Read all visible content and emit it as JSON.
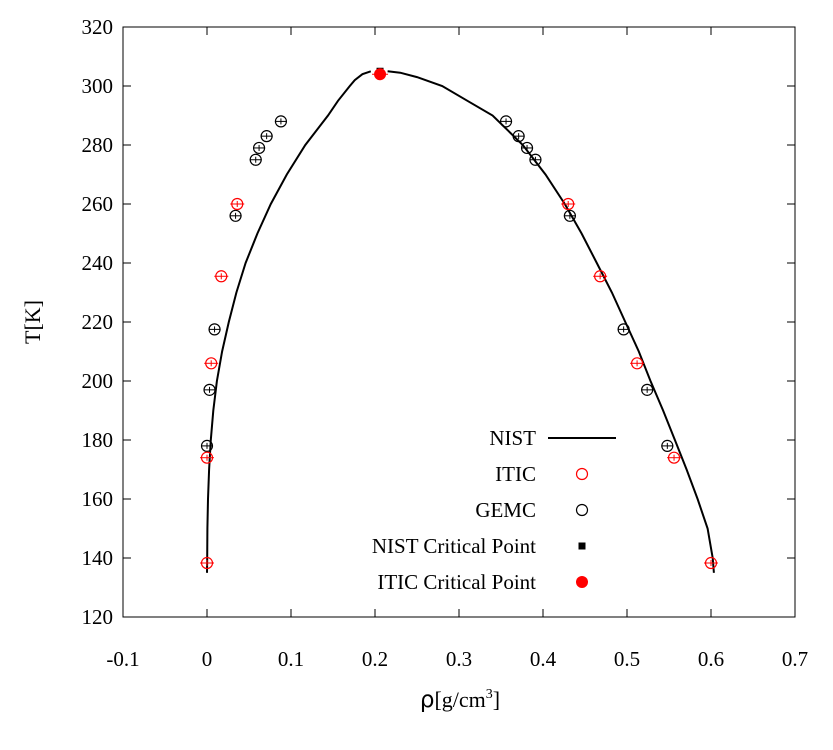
{
  "chart_data": {
    "type": "scatter",
    "xlabel": "ρ[g/cm³]",
    "xlabel_main": "ρ",
    "xlabel_unit": "[g/cm",
    "xlabel_sup": "3",
    "xlabel_close": "]",
    "ylabel": "T[K]",
    "xlim": [
      -0.1,
      0.7
    ],
    "ylim": [
      120,
      320
    ],
    "xticks": [
      -0.1,
      0,
      0.1,
      0.2,
      0.3,
      0.4,
      0.5,
      0.6,
      0.7
    ],
    "xtick_labels": [
      "-0.1",
      "0",
      "0.1",
      "0.2",
      "0.3",
      "0.4",
      "0.5",
      "0.6",
      "0.7"
    ],
    "yticks": [
      120,
      140,
      160,
      180,
      200,
      220,
      240,
      260,
      280,
      300,
      320
    ],
    "ytick_labels": [
      "120",
      "140",
      "160",
      "180",
      "200",
      "220",
      "240",
      "260",
      "280",
      "300",
      "320"
    ],
    "grid": false,
    "legend_position": "bottom-right",
    "colors": {
      "NIST": "#000000",
      "ITIC": "#ff0000",
      "GEMC": "#000000",
      "NIST Critical Point": "#000000",
      "ITIC Critical Point": "#ff0000"
    },
    "series": [
      {
        "name": "NIST",
        "kind": "line",
        "vapor": [
          [
            0.0,
            135
          ],
          [
            0.0002,
            140
          ],
          [
            0.0005,
            150
          ],
          [
            0.0012,
            160
          ],
          [
            0.0025,
            170
          ],
          [
            0.0045,
            180
          ],
          [
            0.0075,
            190
          ],
          [
            0.0118,
            200
          ],
          [
            0.018,
            210
          ],
          [
            0.026,
            220
          ],
          [
            0.035,
            230
          ],
          [
            0.046,
            240
          ],
          [
            0.06,
            250
          ],
          [
            0.076,
            260
          ],
          [
            0.095,
            270
          ],
          [
            0.117,
            280
          ],
          [
            0.144,
            290
          ],
          [
            0.156,
            295
          ],
          [
            0.17,
            300
          ],
          [
            0.176,
            302
          ],
          [
            0.185,
            304
          ],
          [
            0.195,
            305
          ]
        ],
        "liquid": [
          [
            0.215,
            305
          ],
          [
            0.23,
            304.5
          ],
          [
            0.25,
            303
          ],
          [
            0.28,
            300
          ],
          [
            0.31,
            295
          ],
          [
            0.34,
            290
          ],
          [
            0.376,
            280
          ],
          [
            0.403,
            270
          ],
          [
            0.426,
            260
          ],
          [
            0.446,
            250
          ],
          [
            0.464,
            240
          ],
          [
            0.482,
            230
          ],
          [
            0.498,
            220
          ],
          [
            0.514,
            210
          ],
          [
            0.528,
            200
          ],
          [
            0.543,
            190
          ],
          [
            0.557,
            180
          ],
          [
            0.571,
            170
          ],
          [
            0.584,
            160
          ],
          [
            0.596,
            150
          ],
          [
            0.602,
            140
          ],
          [
            0.6035,
            135
          ]
        ]
      },
      {
        "name": "ITIC",
        "kind": "points",
        "points": [
          [
            0.0,
            138.3
          ],
          [
            0.0,
            174
          ],
          [
            0.005,
            206
          ],
          [
            0.017,
            235.5
          ],
          [
            0.036,
            260
          ],
          [
            0.6,
            138.3
          ],
          [
            0.556,
            174
          ],
          [
            0.512,
            206
          ],
          [
            0.468,
            235.5
          ],
          [
            0.43,
            260
          ]
        ]
      },
      {
        "name": "GEMC",
        "kind": "points",
        "points": [
          [
            0.0,
            178
          ],
          [
            0.003,
            197
          ],
          [
            0.009,
            217.5
          ],
          [
            0.034,
            256
          ],
          [
            0.058,
            275
          ],
          [
            0.062,
            279
          ],
          [
            0.071,
            283
          ],
          [
            0.088,
            288
          ],
          [
            0.548,
            178
          ],
          [
            0.524,
            197
          ],
          [
            0.496,
            217.5
          ],
          [
            0.432,
            256
          ],
          [
            0.391,
            275
          ],
          [
            0.381,
            279
          ],
          [
            0.371,
            283
          ],
          [
            0.356,
            288
          ]
        ]
      },
      {
        "name": "NIST Critical Point",
        "kind": "points",
        "points": [
          [
            0.206,
            305
          ]
        ]
      },
      {
        "name": "ITIC Critical Point",
        "kind": "points",
        "points": [
          [
            0.206,
            304
          ]
        ]
      }
    ]
  }
}
